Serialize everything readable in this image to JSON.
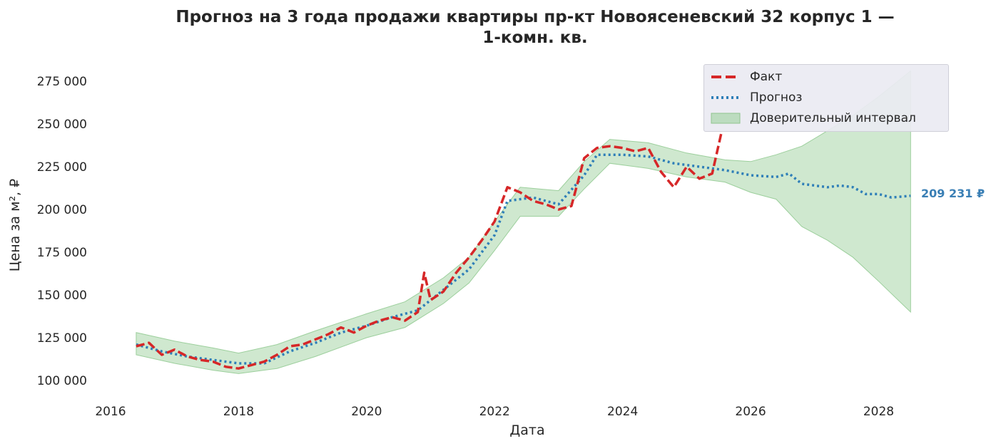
{
  "chart_data": {
    "type": "line",
    "title": "Прогноз на 3 года продажи квартиры  пр-кт Новоясеневский 32 корпус 1 —\n1-комн. кв.",
    "xlabel": "Дата",
    "ylabel": "Цена за м², ₽",
    "xlim": [
      2016.0,
      2029.6
    ],
    "ylim": [
      90000,
      285000
    ],
    "x_ticks": [
      2016,
      2018,
      2020,
      2022,
      2024,
      2026,
      2028
    ],
    "y_ticks": [
      100000,
      125000,
      150000,
      175000,
      200000,
      225000,
      250000,
      275000
    ],
    "y_tick_labels": [
      "100 000",
      "125 000",
      "150 000",
      "175 000",
      "200 000",
      "225 000",
      "250 000",
      "275 000"
    ],
    "legend_position": "top-right",
    "legend": [
      "Факт",
      "Прогноз",
      "Доверительный интервал"
    ],
    "colors": {
      "fact": "#d62728",
      "forecast": "#2f7fb8",
      "interval": "#a8d5a8"
    },
    "series": [
      {
        "name": "Факт",
        "style": "dashed",
        "x": [
          2016.4,
          2016.6,
          2016.8,
          2017.0,
          2017.2,
          2017.4,
          2017.6,
          2017.8,
          2018.0,
          2018.2,
          2018.4,
          2018.6,
          2018.8,
          2019.0,
          2019.2,
          2019.4,
          2019.6,
          2019.8,
          2020.0,
          2020.2,
          2020.4,
          2020.6,
          2020.8,
          2020.9,
          2021.0,
          2021.2,
          2021.4,
          2021.6,
          2021.8,
          2022.0,
          2022.2,
          2022.4,
          2022.6,
          2022.8,
          2023.0,
          2023.2,
          2023.4,
          2023.6,
          2023.8,
          2024.0,
          2024.2,
          2024.4,
          2024.6,
          2024.8,
          2025.0,
          2025.2,
          2025.4,
          2025.55
        ],
        "values": [
          120000,
          122000,
          115000,
          118000,
          114000,
          112000,
          111000,
          108000,
          107000,
          109000,
          111000,
          115000,
          120000,
          121000,
          124000,
          127000,
          131000,
          128000,
          132000,
          135000,
          137000,
          135000,
          140000,
          163000,
          147000,
          152000,
          163000,
          172000,
          182000,
          193000,
          213000,
          210000,
          205000,
          203000,
          200000,
          202000,
          230000,
          236000,
          237000,
          236000,
          234000,
          236000,
          222000,
          213000,
          225000,
          218000,
          221000,
          246000
        ]
      },
      {
        "name": "Прогноз",
        "style": "dotted",
        "x": [
          2016.4,
          2016.8,
          2017.2,
          2017.6,
          2018.0,
          2018.4,
          2018.8,
          2019.2,
          2019.6,
          2020.0,
          2020.4,
          2020.8,
          2021.2,
          2021.6,
          2022.0,
          2022.2,
          2022.6,
          2023.0,
          2023.4,
          2023.6,
          2024.0,
          2024.4,
          2024.8,
          2025.2,
          2025.6,
          2026.0,
          2026.4,
          2026.6,
          2026.8,
          2027.2,
          2027.4,
          2027.6,
          2027.8,
          2028.0,
          2028.2,
          2028.5
        ],
        "values": [
          121000,
          117000,
          114000,
          112000,
          110000,
          110000,
          117000,
          122000,
          128000,
          132000,
          137000,
          141000,
          153000,
          165000,
          185000,
          205000,
          207000,
          203000,
          220000,
          232000,
          232000,
          231000,
          227000,
          225000,
          223000,
          220000,
          219000,
          221000,
          215000,
          213000,
          214000,
          213000,
          209000,
          209000,
          207000,
          208000
        ]
      }
    ],
    "interval": {
      "name": "Доверительный интервал",
      "x": [
        2016.4,
        2017.0,
        2017.6,
        2018.0,
        2018.6,
        2019.2,
        2020.0,
        2020.6,
        2021.2,
        2021.6,
        2022.0,
        2022.4,
        2023.0,
        2023.4,
        2023.8,
        2024.4,
        2025.0,
        2025.6,
        2026.0,
        2026.4,
        2026.8,
        2027.2,
        2027.6,
        2028.0,
        2028.5
      ],
      "lower": [
        115000,
        110000,
        106000,
        104000,
        107000,
        114000,
        125000,
        131000,
        145000,
        157000,
        176000,
        196000,
        196000,
        212000,
        227000,
        224000,
        219000,
        216000,
        210000,
        206000,
        190000,
        182000,
        172000,
        158000,
        140000
      ],
      "upper": [
        128000,
        123000,
        119000,
        116000,
        121000,
        129000,
        139000,
        146000,
        160000,
        172000,
        193000,
        213000,
        211000,
        228000,
        241000,
        239000,
        233000,
        229000,
        228000,
        232000,
        237000,
        246000,
        255000,
        266000,
        281000
      ]
    },
    "last_value_label": "209 231 ₽"
  }
}
